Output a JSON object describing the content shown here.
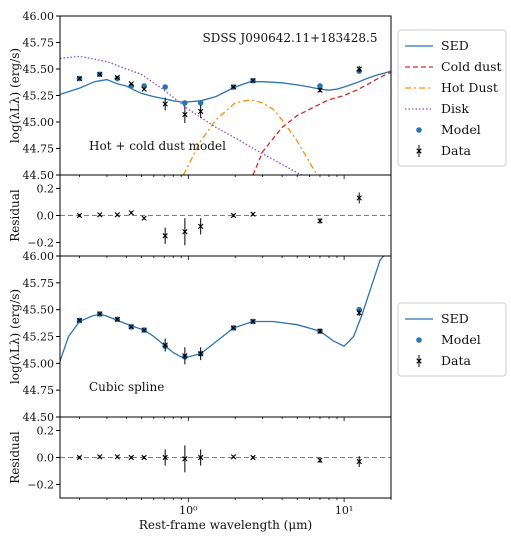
{
  "colors": {
    "sed": "#2b74b0",
    "cold_dust": "#d62728",
    "hot_dust": "#ff8c00",
    "disk": "#8a4fc7",
    "model": "#2b74b0",
    "data": "#000000",
    "zero_line": "#808080"
  },
  "chart_data": [
    {
      "type": "line",
      "title": "SDSS J090642.11+183428.5",
      "annotation": "Hot + cold dust model",
      "ylabel": "log(λLλ) (erg/s)",
      "xscale": "log",
      "xlim": [
        0.15,
        20
      ],
      "ylim": [
        44.5,
        46.0
      ],
      "yticks": [
        "44.50",
        "44.75",
        "45.00",
        "45.25",
        "45.50",
        "45.75",
        "46.00"
      ],
      "legend": {
        "placement": "right",
        "entries": [
          "SED",
          "Cold dust",
          "Hot Dust",
          "Disk",
          "Model",
          "Data"
        ]
      },
      "series": [
        {
          "name": "SED",
          "x": [
            0.15,
            0.2,
            0.25,
            0.3,
            0.35,
            0.4,
            0.45,
            0.5,
            0.6,
            0.7,
            0.8,
            0.9,
            1.0,
            1.2,
            1.5,
            2.0,
            2.5,
            3.0,
            4.0,
            5.0,
            6.0,
            7.0,
            8.0,
            9.0,
            10,
            12,
            14,
            16,
            18,
            20
          ],
          "y": [
            45.26,
            45.32,
            45.38,
            45.4,
            45.36,
            45.34,
            45.3,
            45.27,
            45.24,
            45.22,
            45.2,
            45.19,
            45.19,
            45.2,
            45.24,
            45.33,
            45.38,
            45.38,
            45.37,
            45.35,
            45.33,
            45.31,
            45.3,
            45.31,
            45.33,
            45.37,
            45.41,
            45.44,
            45.46,
            45.48
          ]
        },
        {
          "name": "Cold dust",
          "x": [
            2.6,
            3,
            4,
            5,
            6,
            7,
            8,
            10,
            12,
            14,
            16,
            18,
            20
          ],
          "y": [
            44.5,
            44.72,
            44.95,
            45.06,
            45.12,
            45.17,
            45.21,
            45.25,
            45.3,
            45.35,
            45.4,
            45.44,
            45.47
          ]
        },
        {
          "name": "Hot Dust",
          "x": [
            0.93,
            1.2,
            1.5,
            2.0,
            2.5,
            3.0,
            3.5,
            4.0,
            5.0,
            6.0,
            6.7
          ],
          "y": [
            44.5,
            44.82,
            45.02,
            45.18,
            45.21,
            45.18,
            45.12,
            45.02,
            44.82,
            44.62,
            44.5
          ]
        },
        {
          "name": "Disk",
          "x": [
            0.15,
            0.2,
            0.3,
            0.4,
            0.5,
            0.7,
            1.0,
            1.5,
            2.0,
            3.0,
            4.0,
            5.3
          ],
          "y": [
            45.6,
            45.62,
            45.57,
            45.5,
            45.45,
            45.3,
            45.12,
            44.95,
            44.85,
            44.7,
            44.6,
            44.5
          ]
        }
      ],
      "model_points": {
        "x": [
          0.2,
          0.27,
          0.35,
          0.43,
          0.52,
          0.71,
          0.95,
          1.2,
          1.95,
          2.6,
          7.0,
          12.5
        ],
        "y": [
          45.41,
          45.45,
          45.41,
          45.34,
          45.34,
          45.33,
          45.18,
          45.18,
          45.33,
          45.39,
          45.34,
          45.48
        ]
      },
      "data_points": {
        "x": [
          0.2,
          0.27,
          0.35,
          0.43,
          0.52,
          0.71,
          0.95,
          1.2,
          1.95,
          2.6,
          7.0,
          12.5
        ],
        "y": [
          45.41,
          45.45,
          45.42,
          45.36,
          45.31,
          45.17,
          45.07,
          45.1,
          45.33,
          45.39,
          45.3,
          45.5
        ],
        "err": [
          0.01,
          0.01,
          0.01,
          0.01,
          0.01,
          0.06,
          0.08,
          0.06,
          0.01,
          0.01,
          0.02,
          0.03
        ]
      }
    },
    {
      "type": "scatter",
      "ylabel": "Residual",
      "xscale": "log",
      "xlim": [
        0.15,
        20
      ],
      "ylim": [
        -0.3,
        0.3
      ],
      "yticks": [
        "−0.2",
        "0.0",
        "0.2"
      ],
      "data_points": {
        "x": [
          0.2,
          0.27,
          0.35,
          0.43,
          0.52,
          0.71,
          0.95,
          1.2,
          1.95,
          2.6,
          7.0,
          12.5
        ],
        "y": [
          0.0,
          0.005,
          0.005,
          0.02,
          -0.02,
          -0.15,
          -0.12,
          -0.08,
          0.0,
          0.01,
          -0.04,
          0.13
        ],
        "err": [
          0.01,
          0.01,
          0.01,
          0.01,
          0.01,
          0.06,
          0.1,
          0.06,
          0.01,
          0.01,
          0.02,
          0.04
        ]
      }
    },
    {
      "type": "line",
      "annotation": "Cubic spline",
      "ylabel": "log(λLλ) (erg/s)",
      "xscale": "log",
      "xlim": [
        0.15,
        20
      ],
      "ylim": [
        44.5,
        46.0
      ],
      "yticks": [
        "44.50",
        "44.75",
        "45.00",
        "45.25",
        "45.50",
        "45.75",
        "46.00"
      ],
      "legend": {
        "placement": "right",
        "entries": [
          "SED",
          "Model",
          "Data"
        ]
      },
      "series": [
        {
          "name": "SED",
          "x": [
            0.15,
            0.17,
            0.2,
            0.24,
            0.27,
            0.3,
            0.35,
            0.43,
            0.52,
            0.6,
            0.7,
            0.8,
            0.9,
            1.0,
            1.2,
            1.5,
            1.95,
            2.6,
            3.5,
            5,
            7,
            8.5,
            10,
            11.5,
            13,
            15,
            17,
            20
          ],
          "y": [
            45.02,
            45.25,
            45.39,
            45.44,
            45.46,
            45.44,
            45.4,
            45.35,
            45.31,
            45.25,
            45.17,
            45.1,
            45.06,
            45.06,
            45.09,
            45.2,
            45.33,
            45.39,
            45.39,
            45.36,
            45.3,
            45.21,
            45.16,
            45.25,
            45.45,
            45.72,
            45.96,
            46.08
          ]
        }
      ],
      "model_points": {
        "x": [
          0.2,
          0.27,
          0.35,
          0.43,
          0.52,
          0.71,
          0.95,
          1.2,
          1.95,
          2.6,
          7.0,
          12.5
        ],
        "y": [
          45.4,
          45.46,
          45.41,
          45.34,
          45.31,
          45.16,
          45.06,
          45.09,
          45.33,
          45.39,
          45.3,
          45.5
        ]
      },
      "data_points": {
        "x": [
          0.2,
          0.27,
          0.35,
          0.43,
          0.52,
          0.71,
          0.95,
          1.2,
          1.95,
          2.6,
          7.0,
          12.5
        ],
        "y": [
          45.4,
          45.46,
          45.41,
          45.34,
          45.31,
          45.17,
          45.07,
          45.09,
          45.33,
          45.39,
          45.3,
          45.47
        ],
        "err": [
          0.01,
          0.01,
          0.01,
          0.01,
          0.01,
          0.06,
          0.08,
          0.06,
          0.01,
          0.01,
          0.02,
          0.03
        ]
      }
    },
    {
      "type": "scatter",
      "ylabel": "Residual",
      "xlabel": "Rest-frame wavelength (μm)",
      "xscale": "log",
      "xlim": [
        0.15,
        20
      ],
      "xticks": [
        {
          "value": 1,
          "label": "10⁰"
        },
        {
          "value": 10,
          "label": "10¹"
        }
      ],
      "ylim": [
        -0.3,
        0.3
      ],
      "yticks": [
        "−0.2",
        "0.0",
        "0.2"
      ],
      "data_points": {
        "x": [
          0.2,
          0.27,
          0.35,
          0.43,
          0.52,
          0.71,
          0.95,
          1.2,
          1.95,
          2.6,
          7.0,
          12.5
        ],
        "y": [
          0.0,
          0.005,
          0.005,
          0.0,
          0.0,
          0.0,
          -0.01,
          0.0,
          0.005,
          0.0,
          -0.02,
          -0.03
        ],
        "err": [
          0.01,
          0.01,
          0.01,
          0.01,
          0.01,
          0.06,
          0.1,
          0.06,
          0.01,
          0.01,
          0.02,
          0.04
        ]
      }
    }
  ]
}
